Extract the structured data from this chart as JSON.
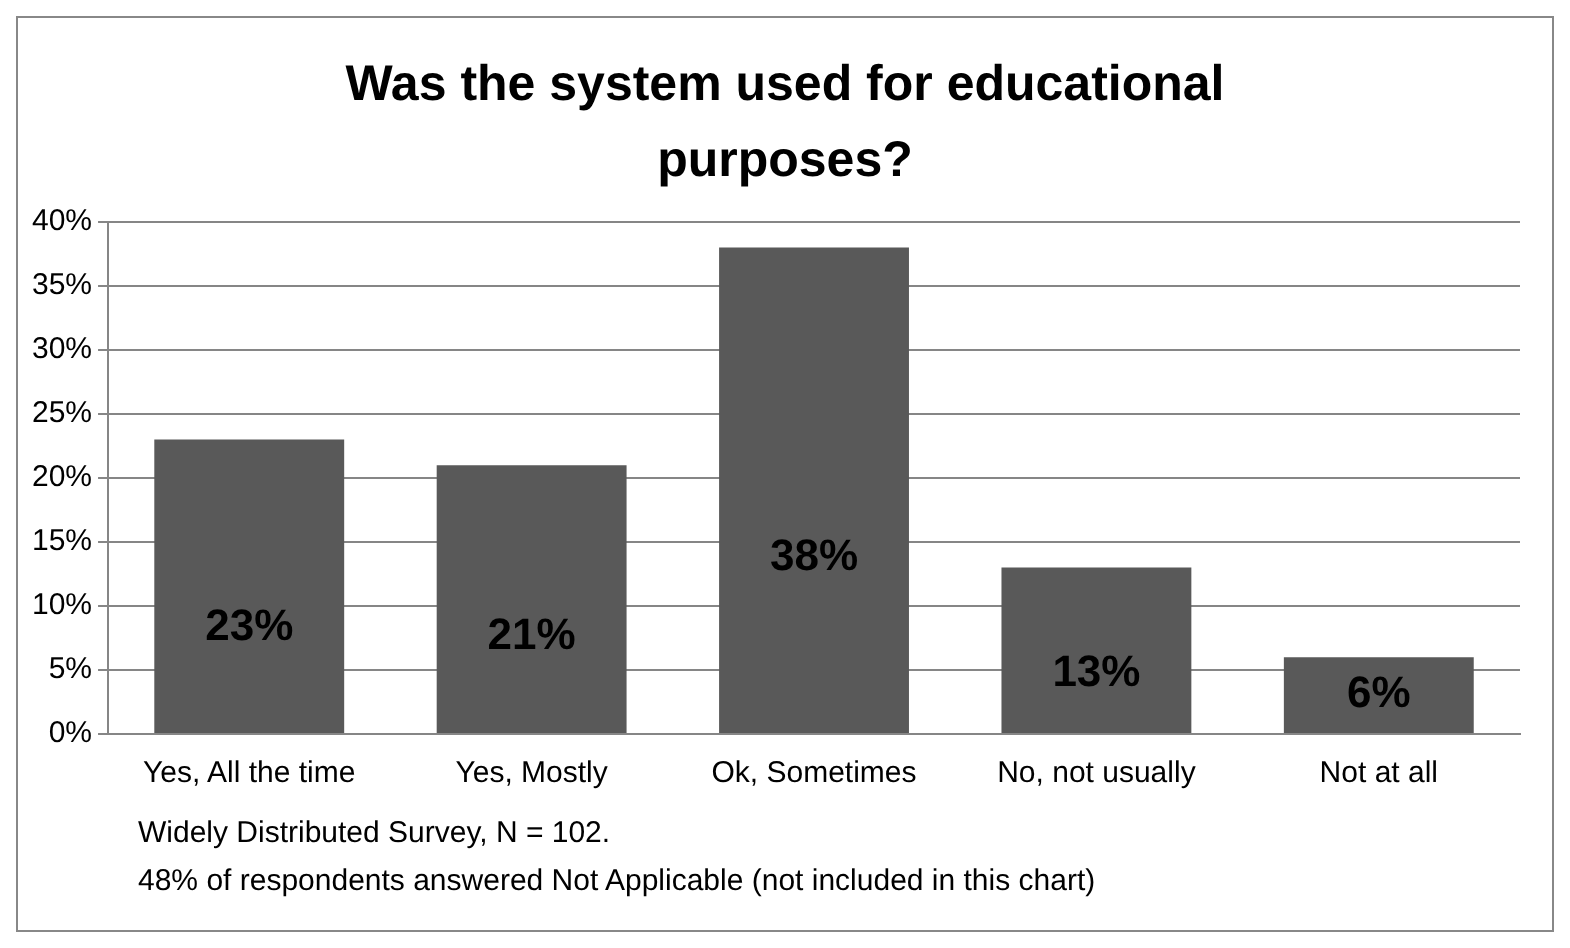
{
  "chart_data": {
    "type": "bar",
    "title": "Was the system used for educational purposes?",
    "categories": [
      "Yes, All the time",
      "Yes, Mostly",
      "Ok, Sometimes",
      "No, not usually",
      "Not at all"
    ],
    "values": [
      23,
      21,
      38,
      13,
      6
    ],
    "value_labels": [
      "23%",
      "21%",
      "38%",
      "13%",
      "6%"
    ],
    "color": "#595959",
    "ylim": [
      0,
      40
    ],
    "yticks": [
      {
        "value": 0,
        "label": "0%"
      },
      {
        "value": 5,
        "label": "5%"
      },
      {
        "value": 10,
        "label": "10%"
      },
      {
        "value": 15,
        "label": "15%"
      },
      {
        "value": 20,
        "label": "20%"
      },
      {
        "value": 25,
        "label": "25%"
      },
      {
        "value": 30,
        "label": "30%"
      },
      {
        "value": 35,
        "label": "35%"
      },
      {
        "value": 40,
        "label": "40%"
      }
    ],
    "grid": "y",
    "legend": false,
    "annotations": [
      "Widely Distributed Survey, N = 102.",
      "48% of respondents answered Not Applicable (not included in this chart)"
    ]
  }
}
